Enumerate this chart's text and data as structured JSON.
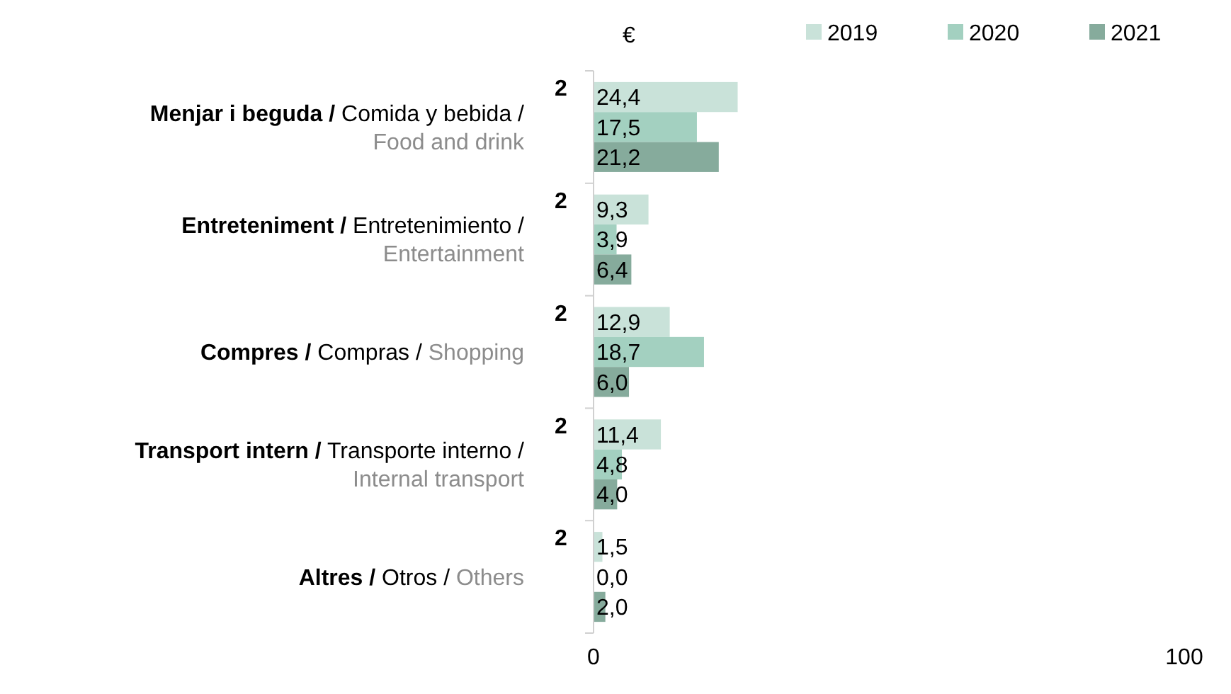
{
  "chart_data": {
    "type": "bar",
    "orientation": "horizontal",
    "xlabel": "€",
    "categories": [
      "Menjar i beguda / Comida y bebida / Food and drink",
      "Entreteniment / Entretenimiento / Entertainment",
      "Compres / Compras / Shopping",
      "Transport intern / Transporte interno / Internal transport",
      "Altres / Otros / Others"
    ],
    "series": [
      {
        "name": "2019",
        "color": "#c9e2d9",
        "values": [
          24.4,
          9.3,
          12.9,
          11.4,
          1.5
        ],
        "value_labels": [
          "24,4",
          "9,3",
          "12,9",
          "11,4",
          "1,5"
        ]
      },
      {
        "name": "2020",
        "color": "#a3d0c0",
        "values": [
          17.5,
          3.9,
          18.7,
          4.8,
          0.0
        ],
        "value_labels": [
          "17,5",
          "3,9",
          "18,7",
          "4,8",
          "0,0"
        ]
      },
      {
        "name": "2021",
        "color": "#86ab9c",
        "values": [
          21.2,
          6.4,
          6.0,
          4.0,
          2.0
        ],
        "value_labels": [
          "21,2",
          "6,4",
          "6,0",
          "4,0",
          "2,0"
        ]
      }
    ],
    "annotations": [
      "2",
      "2",
      "2",
      "2",
      "2"
    ],
    "xlim": [
      0,
      100
    ],
    "xticks": [
      0,
      100
    ],
    "legend": "top right"
  }
}
